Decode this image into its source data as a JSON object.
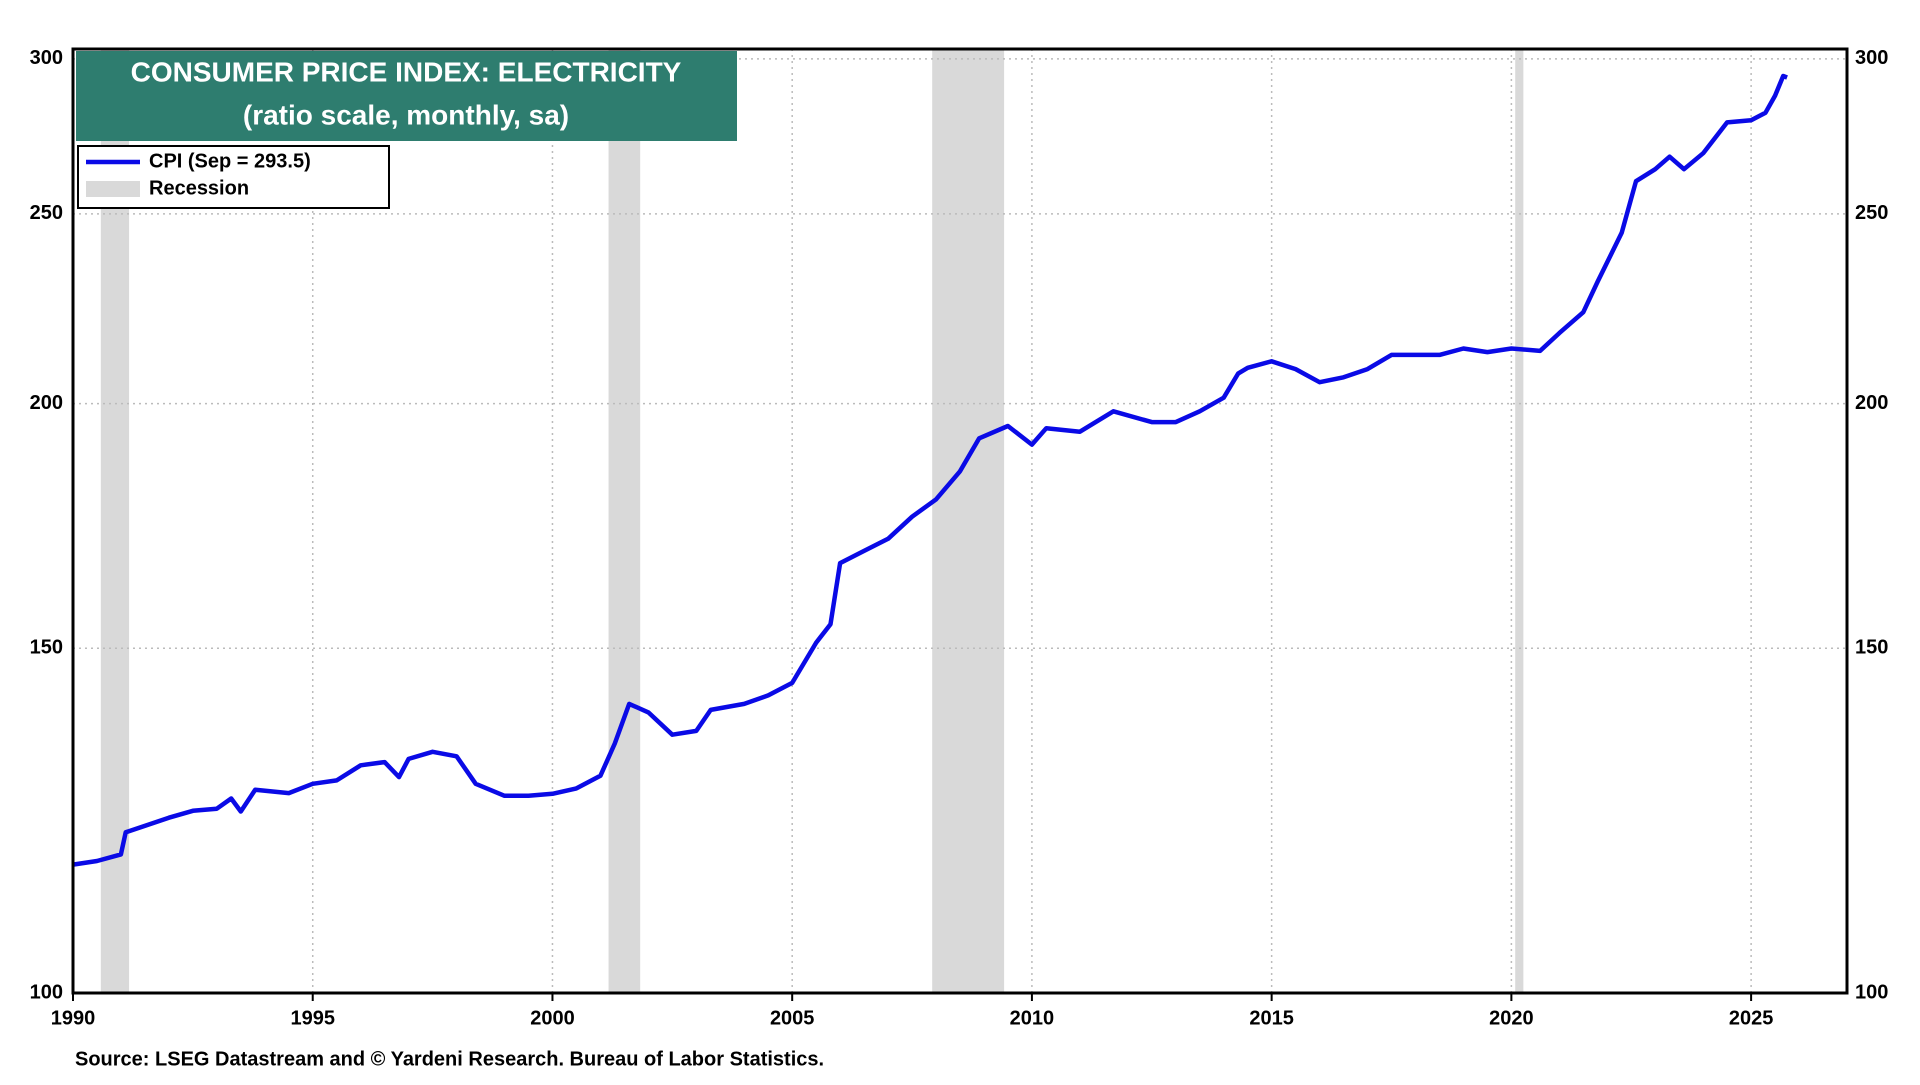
{
  "chart_data": {
    "type": "line",
    "title": "CONSUMER PRICE INDEX: ELECTRICITY",
    "subtitle": "(ratio scale, monthly, sa)",
    "source": "Source: LSEG Datastream and © Yardeni Research. Bureau of Labor Statistics.",
    "yscale": "log",
    "grid": true,
    "legend": "upper left",
    "xlim": [
      1990,
      2027
    ],
    "xticks": [
      1990,
      1995,
      2000,
      2005,
      2010,
      2015,
      2020,
      2025
    ],
    "ylim": [
      100,
      303.5
    ],
    "yticks": [
      100,
      150,
      200,
      250,
      300
    ],
    "recession_label": "Recession",
    "recession_color": "#d9d9d9",
    "recessions": [
      [
        1990.58,
        1991.17
      ],
      [
        2001.17,
        2001.83
      ],
      [
        2007.92,
        2009.42
      ],
      [
        2020.08,
        2020.25
      ]
    ],
    "x": [
      1990.0,
      1990.5,
      1991.0,
      1991.1,
      1992.0,
      1992.5,
      1993.0,
      1993.3,
      1993.5,
      1993.8,
      1994.5,
      1995.0,
      1995.5,
      1996.0,
      1996.5,
      1996.8,
      1997.0,
      1997.5,
      1998.0,
      1998.4,
      1999.0,
      1999.5,
      2000.0,
      2000.5,
      2001.0,
      2001.3,
      2001.6,
      2002.0,
      2002.5,
      2003.0,
      2003.3,
      2004.0,
      2004.5,
      2005.0,
      2005.5,
      2005.8,
      2006.0,
      2006.5,
      2007.0,
      2007.5,
      2008.0,
      2008.5,
      2008.9,
      2009.5,
      2010.0,
      2010.3,
      2011.0,
      2011.7,
      2012.5,
      2013.0,
      2013.5,
      2014.0,
      2014.3,
      2014.5,
      2015.0,
      2015.5,
      2016.0,
      2016.5,
      2017.0,
      2017.5,
      2018.5,
      2019.0,
      2019.5,
      2020.0,
      2020.6,
      2021.0,
      2021.5,
      2021.8,
      2022.3,
      2022.6,
      2023.0,
      2023.3,
      2023.6,
      2024.0,
      2024.5,
      2025.0,
      2025.3,
      2025.5,
      2025.67,
      2025.75
    ],
    "series": [
      {
        "name": "CPI (Sep = 293.5)",
        "color": "#0a0ae6",
        "values": [
          116.3,
          116.8,
          117.7,
          120.8,
          122.9,
          123.9,
          124.2,
          125.7,
          123.8,
          127.0,
          126.5,
          127.9,
          128.4,
          130.7,
          131.2,
          128.9,
          131.7,
          132.8,
          132.1,
          127.9,
          126.1,
          126.1,
          126.4,
          127.2,
          129.1,
          134.1,
          140.5,
          139.1,
          135.5,
          136.1,
          139.5,
          140.5,
          141.9,
          144.0,
          151.0,
          154.3,
          165.8,
          168.2,
          170.6,
          175.1,
          178.7,
          184.7,
          192.0,
          194.8,
          190.6,
          194.3,
          193.5,
          198.2,
          195.7,
          195.7,
          198.2,
          201.4,
          207.2,
          208.6,
          210.2,
          208.3,
          205.1,
          206.3,
          208.3,
          211.8,
          211.8,
          213.4,
          212.5,
          213.4,
          212.8,
          217.3,
          222.7,
          230.9,
          244.5,
          259.8,
          263.5,
          267.4,
          263.5,
          268.5,
          278.4,
          279.1,
          281.6,
          287.3,
          294.0,
          293.5
        ]
      }
    ]
  }
}
